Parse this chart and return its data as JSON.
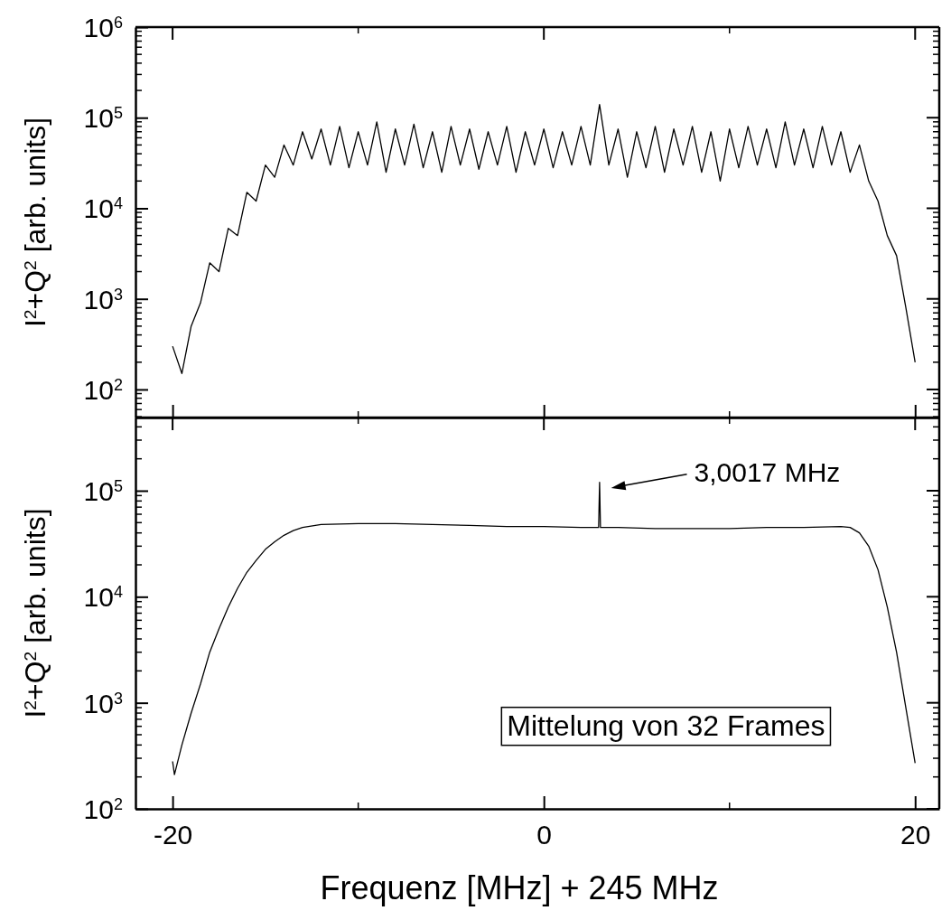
{
  "chart_data": [
    {
      "type": "line",
      "ylabel": "I$^{2}$+Q$^{2}$ [arb. units]",
      "log": "y",
      "tick_labels": "y",
      "xlim": [
        -22,
        21.3
      ],
      "xticks": [
        -20,
        0,
        20
      ],
      "ylim": [
        49,
        1000000
      ],
      "yticks": [
        {
          "value": 100,
          "label": "10$^{2}$"
        },
        {
          "value": 1000,
          "label": "10$^{3}$"
        },
        {
          "value": 10000,
          "label": "10$^{4}$"
        },
        {
          "value": 100000,
          "label": "10$^{5}$"
        },
        {
          "value": 1000000,
          "label": "10$^{6}$"
        }
      ],
      "grid": false,
      "line_style": "solid",
      "series": [
        {
          "color": "#000000",
          "x": [
            -20,
            -19.5,
            -19,
            -18.5,
            -18,
            -17.5,
            -17,
            -16.5,
            -16,
            -15.5,
            -15,
            -14.5,
            -14,
            -13.5,
            -13,
            -12.5,
            -12,
            -11.5,
            -11,
            -10.5,
            -10,
            -9.5,
            -9,
            -8.5,
            -8,
            -7.5,
            -7,
            -6.5,
            -6,
            -5.5,
            -5,
            -4.5,
            -4,
            -3.5,
            -3,
            -2.5,
            -2,
            -1.5,
            -1,
            -0.5,
            0,
            0.5,
            1,
            1.5,
            2,
            2.5,
            3,
            3.5,
            4,
            4.5,
            5,
            5.5,
            6,
            6.5,
            7,
            7.5,
            8,
            8.5,
            9,
            9.5,
            10,
            10.5,
            11,
            11.5,
            12,
            12.5,
            13,
            13.5,
            14,
            14.5,
            15,
            15.5,
            16,
            16.5,
            17,
            17.5,
            18,
            18.5,
            19,
            19.5,
            20
          ],
          "values": [
            300,
            150,
            500,
            900,
            2500,
            2000,
            6000,
            5000,
            15000,
            12000,
            30000,
            22000,
            50000,
            30000,
            70000,
            35000,
            75000,
            30000,
            80000,
            28000,
            70000,
            30000,
            90000,
            25000,
            75000,
            30000,
            85000,
            28000,
            70000,
            25000,
            80000,
            30000,
            75000,
            27000,
            70000,
            30000,
            80000,
            25000,
            70000,
            30000,
            75000,
            28000,
            70000,
            30000,
            80000,
            30000,
            140000,
            30000,
            75000,
            22000,
            70000,
            28000,
            80000,
            25000,
            75000,
            30000,
            80000,
            25000,
            70000,
            20000,
            75000,
            28000,
            80000,
            30000,
            75000,
            28000,
            90000,
            30000,
            75000,
            28000,
            80000,
            30000,
            70000,
            25000,
            50000,
            20000,
            12000,
            5000,
            3000,
            800,
            200
          ]
        }
      ]
    },
    {
      "type": "line",
      "xlabel": "Frequenz [MHz] + 245 MHz",
      "ylabel": "I$^{2}$+Q$^{2}$ [arb. units]",
      "log": "y",
      "xlim": [
        -22,
        21.3
      ],
      "xticks": [
        -20,
        0,
        20
      ],
      "ylim": [
        100,
        490000
      ],
      "yticks": [
        {
          "value": 100,
          "label": "10$^{2}$"
        },
        {
          "value": 1000,
          "label": "10$^{3}$"
        },
        {
          "value": 10000,
          "label": "10$^{4}$"
        },
        {
          "value": 100000,
          "label": "10$^{5}$"
        }
      ],
      "grid": false,
      "line_style": "solid",
      "annotations": [
        "3,0017 MHz",
        "Mittelung von 32 Frames"
      ],
      "series": [
        {
          "color": "#000000",
          "x": [
            -20,
            -19.9,
            -19.5,
            -19,
            -18.5,
            -18,
            -17.5,
            -17,
            -16.5,
            -16,
            -15.5,
            -15,
            -14.5,
            -14,
            -13.5,
            -13,
            -12,
            -10,
            -8,
            -6,
            -4,
            -2,
            0,
            2,
            2.95,
            3.0017,
            3.05,
            4,
            6,
            8,
            10,
            12,
            14,
            16,
            16.5,
            17,
            17.5,
            18,
            18.5,
            19,
            19.5,
            20
          ],
          "values": [
            280,
            210,
            400,
            800,
            1500,
            3000,
            5000,
            8000,
            12000,
            17000,
            22000,
            28000,
            33000,
            38000,
            42000,
            45000,
            48000,
            49000,
            49000,
            48000,
            47000,
            46000,
            46000,
            45000,
            45000,
            120000,
            45000,
            45000,
            44000,
            44000,
            44000,
            45000,
            45000,
            46000,
            45000,
            40000,
            30000,
            18000,
            8000,
            3000,
            900,
            270
          ]
        }
      ]
    }
  ]
}
